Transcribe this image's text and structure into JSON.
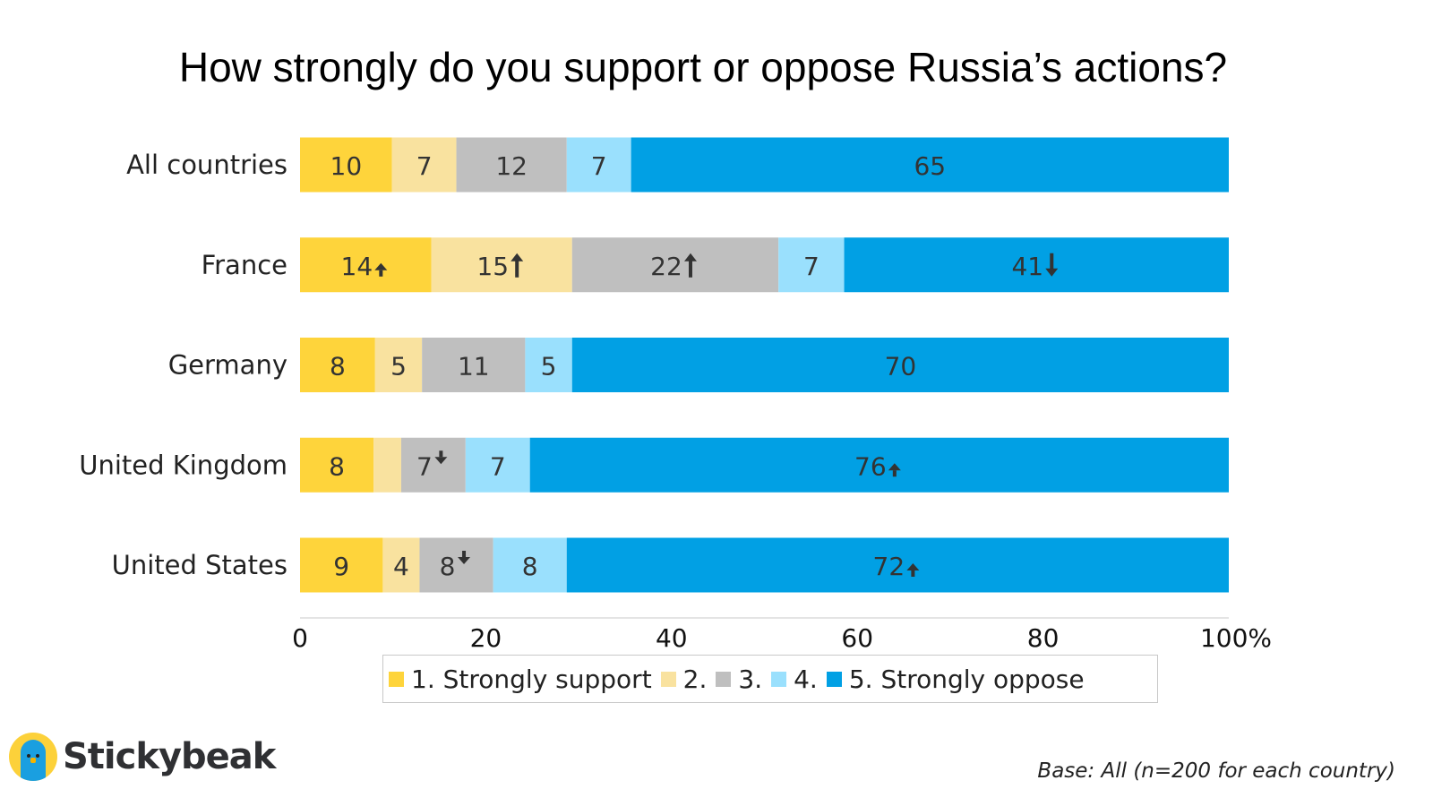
{
  "chart_data": {
    "type": "bar",
    "orientation": "horizontal",
    "stacked": true,
    "title": "How strongly do you support or oppose Russia’s actions?",
    "xlabel": "",
    "ylabel": "",
    "xlim": [
      0,
      100
    ],
    "xticks": [
      "0",
      "20",
      "40",
      "60",
      "80",
      "100%"
    ],
    "grid": false,
    "legend_position": "bottom",
    "categories": [
      "All countries",
      "France",
      "Germany",
      "United Kingdom",
      "United States"
    ],
    "series": [
      {
        "name": "1. Strongly support",
        "color": "#fed43b",
        "values": [
          10,
          14,
          8,
          8,
          9
        ],
        "labels": [
          "10",
          "14",
          "8",
          "8",
          "9"
        ],
        "change": [
          "",
          "up-small",
          "",
          "",
          ""
        ]
      },
      {
        "name": "2.",
        "color": "#f9e29f",
        "values": [
          7,
          15,
          5,
          3,
          4
        ],
        "labels": [
          "7",
          "15",
          "5",
          "",
          "4"
        ],
        "change": [
          "",
          "up",
          "",
          "",
          ""
        ]
      },
      {
        "name": "3.",
        "color": "#bfbfbf",
        "values": [
          12,
          22,
          11,
          7,
          8
        ],
        "labels": [
          "12",
          "22",
          "11",
          "7",
          "8"
        ],
        "change": [
          "",
          "up",
          "",
          "down-small",
          "down-small"
        ]
      },
      {
        "name": "4.",
        "color": "#9ae0fd",
        "values": [
          7,
          7,
          5,
          7,
          8
        ],
        "labels": [
          "7",
          "7",
          "5",
          "7",
          "8"
        ],
        "change": [
          "",
          "",
          "",
          "",
          ""
        ]
      },
      {
        "name": "5. Strongly oppose",
        "color": "#01a0e4",
        "values": [
          65,
          41,
          70,
          76,
          72
        ],
        "labels": [
          "65",
          "41",
          "70",
          "76",
          "72"
        ],
        "change": [
          "",
          "down",
          "",
          "up-small",
          "up-small"
        ]
      }
    ]
  },
  "footer": {
    "brand": "Stickybeak",
    "base_note": "Base: All (n=200 for each country)"
  }
}
